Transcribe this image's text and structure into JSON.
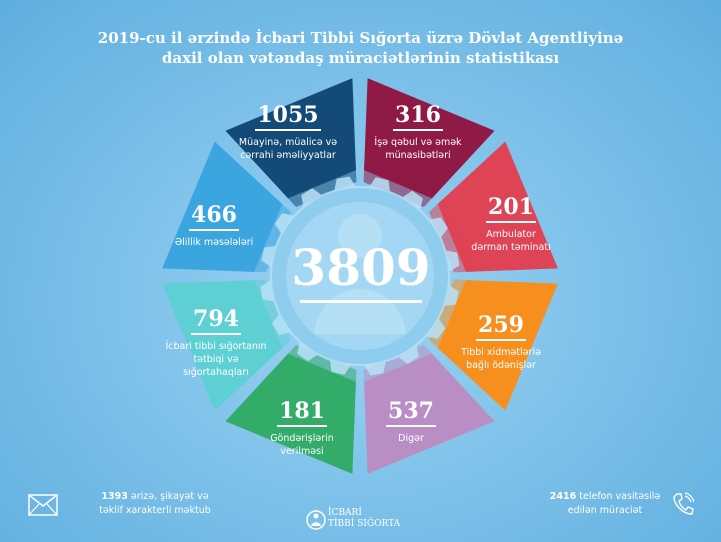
{
  "title": {
    "line1": "2019-cu il ərzində İcbari Tibbi Sığorta üzrə Dövlət Agentliyinə",
    "line2": "daxil olan vətəndaş müraciətlərinin statistikası"
  },
  "total": "3809",
  "segments": [
    {
      "value": "1055",
      "label1": "Müayinə, müalicə və",
      "label2": "cərrahi əməliyyatlar",
      "color": "#144a78"
    },
    {
      "value": "316",
      "label1": "İşə qəbul və əmək",
      "label2": "münasibətləri",
      "color": "#8f1a45"
    },
    {
      "value": "201",
      "label1": "Ambulator",
      "label2": "dərman təminatı",
      "color": "#de4356"
    },
    {
      "value": "259",
      "label1": "Tibbi xidmətlərlə",
      "label2": "bağlı ödənişlər",
      "color": "#f78f1f"
    },
    {
      "value": "537",
      "label1": "Digər",
      "label2": "",
      "color": "#b98ec5"
    },
    {
      "value": "181",
      "label1": "Göndərişlərin",
      "label2": "verilməsi",
      "color": "#33ac6a"
    },
    {
      "value": "794",
      "label1": "İcbari tibbi sığortanın",
      "label2": "tətbiqi və",
      "label3": "sığortahaqları",
      "color": "#5ed0d4"
    },
    {
      "value": "466",
      "label1": "Əlillik məsələləri",
      "label2": "",
      "color": "#3ba5e0"
    }
  ],
  "footer": {
    "left_count": "1393",
    "left_text1": "ərizə, şikayət və",
    "left_text2": "təklif xarakterli məktub",
    "right_count": "2416",
    "right_text1": "telefon vasitəsilə",
    "right_text2": "edilən müraciət",
    "logo_line1": "İCBARİ",
    "logo_line2": "TİBBİ SIĞORTA"
  },
  "icons": {
    "left": "envelope-icon",
    "right": "phone-icon",
    "logo": "logo-icon"
  }
}
